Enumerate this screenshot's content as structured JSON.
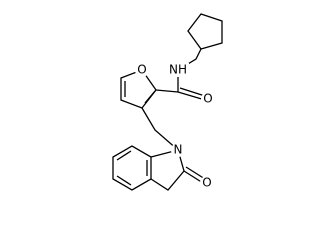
{
  "atom_labels": [
    "O",
    "NH",
    "O",
    "N",
    "O"
  ]
}
